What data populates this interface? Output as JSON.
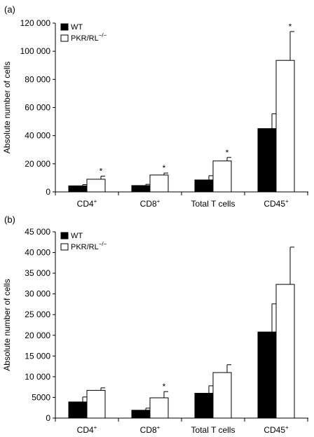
{
  "chart_data": [
    {
      "panel_label": "(a)",
      "type": "bar",
      "ylabel": "Absolute number of cells",
      "ylim": [
        0,
        120000
      ],
      "yticks": [
        0,
        20000,
        40000,
        60000,
        80000,
        100000,
        120000
      ],
      "ytick_labels": [
        "0",
        "20 000",
        "40 000",
        "60 000",
        "80 000",
        "100 000",
        "120 000"
      ],
      "categories": [
        "CD4",
        "CD8",
        "Total T cells",
        "CD45"
      ],
      "category_superscripts": [
        "+",
        "+",
        "",
        "+"
      ],
      "legend_position": "top-left",
      "series": [
        {
          "name": "WT",
          "legend_superscript": "",
          "fill": "#000000",
          "values": [
            4300,
            4500,
            8500,
            45000
          ],
          "errors": [
            900,
            900,
            3000,
            10500
          ],
          "significant": [
            false,
            false,
            false,
            false
          ]
        },
        {
          "name": "PKR/RL",
          "legend_superscript": "−/−",
          "fill": "#ffffff",
          "values": [
            9000,
            12000,
            22000,
            93500
          ],
          "errors": [
            2200,
            1400,
            2500,
            20500
          ],
          "significant": [
            true,
            true,
            true,
            true
          ]
        }
      ],
      "significance_marker": "*"
    },
    {
      "panel_label": "(b)",
      "type": "bar",
      "ylabel": "Absolute number of cells",
      "ylim": [
        0,
        45000
      ],
      "yticks": [
        0,
        5000,
        10000,
        15000,
        20000,
        25000,
        30000,
        35000,
        40000,
        45000
      ],
      "ytick_labels": [
        "0",
        "5000",
        "10 000",
        "15 000",
        "20 000",
        "25 000",
        "30 000",
        "35 000",
        "40 000",
        "45 000"
      ],
      "categories": [
        "CD4",
        "CD8",
        "Total T cells",
        "CD45"
      ],
      "category_superscripts": [
        "+",
        "+",
        "",
        "+"
      ],
      "legend_position": "top-left",
      "series": [
        {
          "name": "WT",
          "legend_superscript": "",
          "fill": "#000000",
          "values": [
            3900,
            1900,
            6000,
            20800
          ],
          "errors": [
            1200,
            500,
            1800,
            6800
          ],
          "significant": [
            false,
            false,
            false,
            false
          ]
        },
        {
          "name": "PKR/RL",
          "legend_superscript": "−/−",
          "fill": "#ffffff",
          "values": [
            6700,
            4900,
            11000,
            32300
          ],
          "errors": [
            600,
            1500,
            1900,
            9000
          ],
          "significant": [
            false,
            true,
            false,
            false
          ]
        }
      ],
      "significance_marker": "*"
    }
  ]
}
